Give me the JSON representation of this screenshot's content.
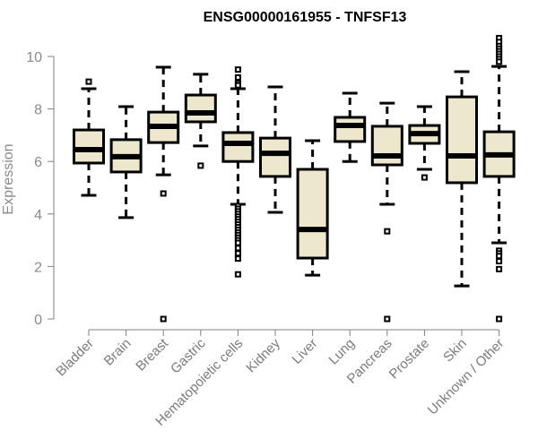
{
  "chart_data": {
    "type": "box",
    "title": "ENSG00000161955 - TNFSF13",
    "xlabel": "",
    "ylabel": "Expression",
    "ylim": [
      0,
      10
    ],
    "yticks": [
      0,
      2,
      4,
      6,
      8,
      10
    ],
    "box_fill": "#ede8cd",
    "categories": [
      "Bladder",
      "Brain",
      "Breast",
      "Gastric",
      "Hematopoietic cells",
      "Kidney",
      "Liver",
      "Lung",
      "Pancreas",
      "Prostate",
      "Skin",
      "Unknown / Other"
    ],
    "boxes": [
      {
        "lower": 4.71,
        "q1": 5.94,
        "median": 6.45,
        "q3": 7.2,
        "upper": 8.77,
        "outliers": [
          9.04
        ]
      },
      {
        "lower": 3.86,
        "q1": 5.6,
        "median": 6.18,
        "q3": 6.83,
        "upper": 8.09,
        "outliers": []
      },
      {
        "lower": 5.49,
        "q1": 6.72,
        "median": 7.34,
        "q3": 7.88,
        "upper": 9.59,
        "outliers": [
          4.78,
          0
        ]
      },
      {
        "lower": 6.59,
        "q1": 7.51,
        "median": 7.85,
        "q3": 8.53,
        "upper": 9.32,
        "outliers": [
          5.84
        ]
      },
      {
        "lower": 4.37,
        "q1": 6.0,
        "median": 6.69,
        "q3": 7.1,
        "upper": 8.77,
        "outliers": [
          9.5,
          9.2,
          8.98,
          8.9,
          4.3,
          4.2,
          4.1,
          4.0,
          3.9,
          3.8,
          3.7,
          3.6,
          3.5,
          3.4,
          3.3,
          3.2,
          3.1,
          3.0,
          2.9,
          2.7,
          2.5,
          2.3,
          1.7
        ]
      },
      {
        "lower": 4.06,
        "q1": 5.43,
        "median": 6.31,
        "q3": 6.89,
        "upper": 8.84,
        "outliers": []
      },
      {
        "lower": 1.67,
        "q1": 2.32,
        "median": 3.41,
        "q3": 5.7,
        "upper": 6.79,
        "outliers": []
      },
      {
        "lower": 6.0,
        "q1": 6.76,
        "median": 7.37,
        "q3": 7.68,
        "upper": 8.6,
        "outliers": []
      },
      {
        "lower": 4.37,
        "q1": 5.87,
        "median": 6.21,
        "q3": 7.34,
        "upper": 8.22,
        "outliers": [
          3.34,
          0
        ]
      },
      {
        "lower": 5.7,
        "q1": 6.69,
        "median": 7.06,
        "q3": 7.37,
        "upper": 8.09,
        "outliers": [
          5.39
        ]
      },
      {
        "lower": 1.26,
        "q1": 5.19,
        "median": 6.21,
        "q3": 8.46,
        "upper": 9.42,
        "outliers": []
      },
      {
        "lower": 2.9,
        "q1": 5.43,
        "median": 6.25,
        "q3": 7.13,
        "upper": 9.62,
        "outliers": [
          10.7,
          10.55,
          10.4,
          10.3,
          10.2,
          10.1,
          10.0,
          9.9,
          9.8,
          2.6,
          2.5,
          2.4,
          2.2,
          1.9,
          0
        ]
      }
    ]
  }
}
